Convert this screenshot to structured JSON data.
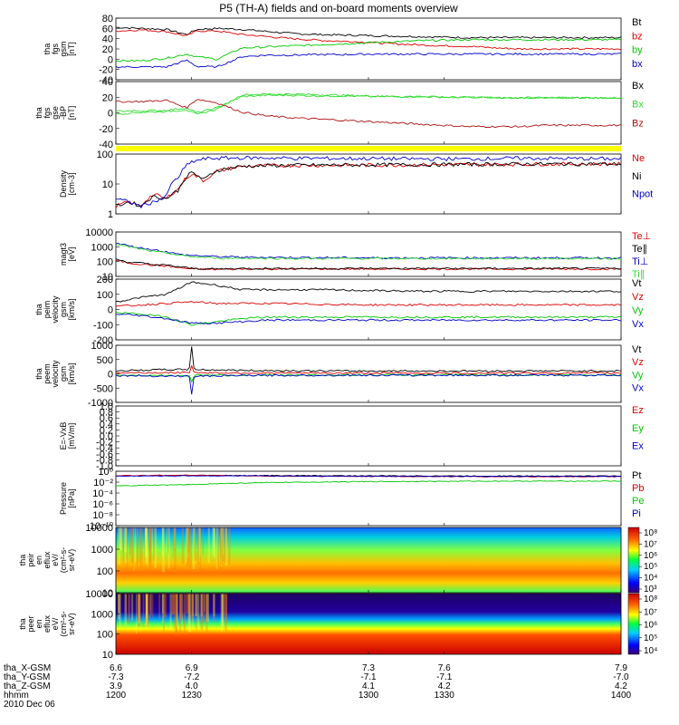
{
  "title": "P5 (TH-A) fields and on-board moments overview",
  "colors": {
    "black": "#000000",
    "red": "#dd0000",
    "green": "#00c800",
    "blue": "#0000cc",
    "light_green": "#33dd33",
    "dark_red": "#aa1111",
    "yellow_bar": "#ffff00"
  },
  "chart_data": [
    {
      "type": "line",
      "panel": "fgs_gsm",
      "ylabel_lines": [
        "tha",
        "fgs",
        "gsm",
        "[nT]"
      ],
      "ylim": [
        -40,
        80
      ],
      "yticks": [
        "80",
        "60",
        "40",
        "20",
        "0",
        "-20",
        "-40"
      ],
      "legend": [
        {
          "label": "Bt",
          "color": "black"
        },
        {
          "label": "bz",
          "color": "red"
        },
        {
          "label": "by",
          "color": "green"
        },
        {
          "label": "bx",
          "color": "blue"
        }
      ],
      "x": [
        1200,
        1210,
        1220,
        1228,
        1232,
        1240,
        1250,
        1260,
        1270,
        1280,
        1290,
        1300,
        1310,
        1320,
        1330,
        1340,
        1350,
        1360,
        1370,
        1380,
        1390,
        1400
      ],
      "series": [
        {
          "name": "Bt",
          "values": [
            62,
            60,
            58,
            48,
            58,
            60,
            58,
            54,
            50,
            48,
            47,
            46,
            45,
            44,
            43,
            42,
            42,
            42,
            42,
            42,
            42,
            42
          ]
        },
        {
          "name": "bz",
          "values": [
            55,
            57,
            54,
            45,
            55,
            55,
            48,
            44,
            40,
            37,
            35,
            33,
            30,
            28,
            26,
            25,
            22,
            20,
            20,
            20,
            20,
            20
          ]
        },
        {
          "name": "by",
          "values": [
            -3,
            -3,
            2,
            10,
            5,
            0,
            22,
            24,
            26,
            28,
            30,
            32,
            34,
            36,
            37,
            38,
            38,
            38,
            38,
            38,
            38,
            38
          ]
        },
        {
          "name": "bx",
          "values": [
            -15,
            -15,
            -15,
            -2,
            -14,
            -15,
            5,
            8,
            8,
            9,
            9,
            10,
            10,
            10,
            10,
            10,
            10,
            10,
            10,
            10,
            10,
            10
          ]
        }
      ]
    },
    {
      "type": "line",
      "panel": "fgs_gse",
      "ylabel_lines": [
        "tha",
        "fgs",
        "gse",
        "-BP",
        "[nT]"
      ],
      "ylim": [
        -50,
        50
      ],
      "yticks": [
        "40",
        "20",
        "0",
        "-20",
        "-40"
      ],
      "legend": [
        {
          "label": "Bx",
          "color": "black"
        },
        {
          "label": "Bx",
          "color": "light_green"
        },
        {
          "label": "Bz",
          "color": "dark_red"
        }
      ],
      "x": [
        1200,
        1210,
        1220,
        1228,
        1232,
        1240,
        1250,
        1260,
        1270,
        1280,
        1290,
        1300,
        1310,
        1320,
        1330,
        1340,
        1350,
        1360,
        1370,
        1380,
        1390,
        1400
      ],
      "series": [
        {
          "name": "Bx",
          "values": [
            3,
            3,
            4,
            8,
            0,
            8,
            26,
            28,
            28,
            27,
            27,
            26,
            26,
            26,
            25,
            25,
            24,
            24,
            24,
            24,
            24,
            24
          ]
        },
        {
          "name": "Bx",
          "values": [
            -2,
            1,
            2,
            5,
            -3,
            6,
            29,
            30,
            30,
            29,
            28,
            27,
            26,
            26,
            25,
            25,
            24,
            24,
            24,
            24,
            24,
            24
          ]
        },
        {
          "name": "Bz",
          "values": [
            18,
            18,
            20,
            8,
            22,
            16,
            1,
            -5,
            -8,
            -10,
            -12,
            -14,
            -16,
            -18,
            -20,
            -22,
            -22,
            -22,
            -20,
            -20,
            -20,
            -20
          ]
        }
      ]
    },
    {
      "type": "line",
      "panel": "density",
      "yscale": "log",
      "ylabel_lines": [
        "Density",
        "[cm-3]"
      ],
      "ylim": [
        1,
        250
      ],
      "yticks": [
        "100",
        "10",
        "1"
      ],
      "legend": [
        {
          "label": "Ne",
          "color": "red"
        },
        {
          "label": "Ni",
          "color": "black"
        },
        {
          "label": "Npot",
          "color": "blue"
        }
      ],
      "x": [
        1200,
        1205,
        1210,
        1215,
        1220,
        1225,
        1230,
        1235,
        1240,
        1250,
        1260,
        1270,
        1280,
        1290,
        1300,
        1320,
        1340,
        1360,
        1380,
        1400
      ],
      "series": [
        {
          "name": "Ne",
          "values": [
            2,
            3,
            2,
            6,
            4,
            10,
            40,
            20,
            50,
            80,
            85,
            88,
            88,
            90,
            90,
            92,
            95,
            98,
            100,
            100
          ]
        },
        {
          "name": "Ni",
          "values": [
            2,
            3,
            2,
            5,
            4,
            9,
            45,
            22,
            55,
            82,
            86,
            89,
            90,
            91,
            92,
            94,
            96,
            99,
            100,
            100
          ]
        },
        {
          "name": "Npot",
          "values": [
            4,
            3,
            2,
            3,
            5,
            30,
            120,
            160,
            170,
            175,
            175,
            170,
            170,
            165,
            165,
            160,
            160,
            170,
            165,
            160
          ]
        }
      ]
    },
    {
      "type": "line",
      "panel": "temperature",
      "yscale": "log",
      "ylabel_lines": [
        "magt3",
        "[eV]"
      ],
      "ylim": [
        5,
        20000
      ],
      "yticks": [
        "10000",
        "1000",
        "100",
        "10"
      ],
      "legend": [
        {
          "label": "Te⊥",
          "color": "red"
        },
        {
          "label": "Te∥",
          "color": "black"
        },
        {
          "label": "Ti⊥",
          "color": "blue"
        },
        {
          "label": "Ti∥",
          "color": "light_green"
        }
      ],
      "x": [
        1200,
        1205,
        1210,
        1215,
        1220,
        1225,
        1230,
        1240,
        1250,
        1270,
        1300,
        1330,
        1360,
        1400
      ],
      "series": [
        {
          "name": "Te⊥",
          "values": [
            100,
            60,
            50,
            40,
            35,
            25,
            20,
            18,
            20,
            20,
            20,
            20,
            20,
            20
          ]
        },
        {
          "name": "Te∥",
          "values": [
            120,
            70,
            60,
            45,
            40,
            30,
            22,
            20,
            22,
            22,
            22,
            22,
            22,
            22
          ]
        },
        {
          "name": "Ti⊥",
          "values": [
            2500,
            1500,
            1000,
            700,
            500,
            300,
            250,
            200,
            180,
            170,
            160,
            160,
            160,
            160
          ]
        },
        {
          "name": "Ti∥",
          "values": [
            2000,
            1200,
            800,
            500,
            400,
            250,
            200,
            150,
            150,
            140,
            140,
            140,
            140,
            140
          ]
        }
      ]
    },
    {
      "type": "line",
      "panel": "peim_velocity",
      "ylabel_lines": [
        "tha",
        "peim",
        "velocity",
        "gsm",
        "[km/s]"
      ],
      "ylim": [
        -200,
        200
      ],
      "yticks": [
        "200",
        "100",
        "0",
        "-100",
        "-200"
      ],
      "legend": [
        {
          "label": "Vt",
          "color": "black"
        },
        {
          "label": "Vz",
          "color": "red"
        },
        {
          "label": "Vy",
          "color": "green"
        },
        {
          "label": "Vx",
          "color": "blue"
        }
      ],
      "x": [
        1200,
        1210,
        1220,
        1230,
        1240,
        1250,
        1260,
        1280,
        1300,
        1320,
        1340,
        1360,
        1380,
        1400
      ],
      "series": [
        {
          "name": "Vt",
          "values": [
            50,
            80,
            100,
            180,
            160,
            130,
            130,
            130,
            125,
            120,
            120,
            120,
            120,
            120
          ]
        },
        {
          "name": "Vz",
          "values": [
            20,
            30,
            40,
            50,
            40,
            40,
            40,
            35,
            30,
            30,
            30,
            30,
            30,
            30
          ]
        },
        {
          "name": "Vy",
          "values": [
            -20,
            -30,
            -50,
            -100,
            -80,
            -60,
            -50,
            -50,
            -50,
            -50,
            -50,
            -50,
            -50,
            -50
          ]
        },
        {
          "name": "Vx",
          "values": [
            -30,
            -40,
            -60,
            -90,
            -90,
            -80,
            -70,
            -70,
            -70,
            -70,
            -70,
            -70,
            -70,
            -70
          ]
        }
      ]
    },
    {
      "type": "line",
      "panel": "peem_velocity",
      "ylabel_lines": [
        "tha",
        "peem",
        "velocity",
        "gsm",
        "[km/s]"
      ],
      "ylim": [
        -1000,
        1000
      ],
      "yticks": [
        "1000",
        "500",
        "0",
        "-500",
        "-1000"
      ],
      "legend": [
        {
          "label": "Vt",
          "color": "black"
        },
        {
          "label": "Vz",
          "color": "red"
        },
        {
          "label": "Vy",
          "color": "green"
        },
        {
          "label": "Vx",
          "color": "blue"
        }
      ],
      "x": [
        1200,
        1220,
        1229,
        1230,
        1231,
        1250,
        1280,
        1320,
        1360,
        1400
      ],
      "series": [
        {
          "name": "Vt",
          "values": [
            100,
            150,
            150,
            950,
            150,
            120,
            100,
            100,
            100,
            100
          ]
        },
        {
          "name": "Vz",
          "values": [
            30,
            40,
            40,
            300,
            40,
            30,
            25,
            25,
            25,
            25
          ]
        },
        {
          "name": "Vy",
          "values": [
            -40,
            -60,
            -60,
            -300,
            -60,
            -50,
            -40,
            -40,
            -40,
            -40
          ]
        },
        {
          "name": "Vx",
          "values": [
            -60,
            -80,
            -80,
            -700,
            -80,
            -60,
            -50,
            -50,
            -50,
            -50
          ]
        }
      ]
    },
    {
      "type": "line",
      "panel": "e_field",
      "ylabel_lines": [
        "E=-VxB",
        "[mV/m]"
      ],
      "ylim": [
        -1.0,
        1.0
      ],
      "yticks": [
        "1.0",
        "0.8",
        "0.6",
        "0.4",
        "0.2",
        "0.0",
        "-0.2",
        "-0.4",
        "-0.6",
        "-0.8",
        "-1.0"
      ],
      "legend": [
        {
          "label": "Ez",
          "color": "red"
        },
        {
          "label": "Ey",
          "color": "green"
        },
        {
          "label": "Ex",
          "color": "blue"
        }
      ],
      "series": []
    },
    {
      "type": "line",
      "panel": "pressure",
      "yscale": "log",
      "ylabel_lines": [
        "Pressure",
        "[nPa]"
      ],
      "ylim": [
        1e-10,
        10
      ],
      "yticks": [
        "10⁰",
        "10⁻²",
        "10⁻⁴",
        "10⁻⁶",
        "10⁻⁸",
        "10⁻¹⁰"
      ],
      "legend": [
        {
          "label": "Pt",
          "color": "black"
        },
        {
          "label": "Pb",
          "color": "red"
        },
        {
          "label": "Pe",
          "color": "green"
        },
        {
          "label": "Pi",
          "color": "blue"
        }
      ],
      "x": [
        1200,
        1230,
        1260,
        1300,
        1350,
        1400
      ],
      "series": [
        {
          "name": "Pt",
          "values": [
            1.2,
            1.5,
            1.3,
            1.2,
            1.1,
            1.1
          ]
        },
        {
          "name": "Pb",
          "values": [
            1.3,
            1.6,
            1.0,
            0.9,
            0.8,
            0.8
          ]
        },
        {
          "name": "Pe",
          "values": [
            0.01,
            0.02,
            0.05,
            0.08,
            0.1,
            0.1
          ]
        },
        {
          "name": "Pi",
          "values": [
            1.0,
            1.2,
            1.1,
            1.0,
            0.9,
            0.9
          ]
        }
      ]
    },
    {
      "type": "heatmap",
      "panel": "peir_eflux",
      "ylabel_lines": [
        "tha",
        "peir",
        "en",
        "eflux",
        "eV/",
        "(cm²-s-",
        "sr-eV)"
      ],
      "yscale": "log",
      "ylim": [
        10,
        20000
      ],
      "yticks": [
        "10000",
        "1000",
        "100",
        "10"
      ],
      "colorbar_ticks": [
        "10⁸",
        "10⁷",
        "10⁶",
        "10⁵",
        "10⁴",
        "10³"
      ]
    },
    {
      "type": "heatmap",
      "panel": "peer_eflux",
      "ylabel_lines": [
        "tha",
        "peer",
        "en",
        "eflux",
        "eV/",
        "(cm²-s-",
        "sr-eV)"
      ],
      "yscale": "log",
      "ylim": [
        10,
        20000
      ],
      "yticks": [
        "10000",
        "1000",
        "100",
        "10"
      ],
      "colorbar_ticks": [
        "10⁸",
        "10⁷",
        "10⁶",
        "10⁵",
        "10⁴"
      ]
    }
  ],
  "x_axis": {
    "rows": [
      {
        "label": "tha_X-GSM",
        "values": [
          "6.6",
          "6.9",
          "7.3",
          "7.6",
          "7.9"
        ]
      },
      {
        "label": "tha_Y-GSM",
        "values": [
          "-7.3",
          "-7.2",
          "-7.1",
          "-7.1",
          "-7.0"
        ]
      },
      {
        "label": "tha_Z-GSM",
        "values": [
          "3.9",
          "4.0",
          "4.1",
          "4.2",
          "4.2"
        ]
      },
      {
        "label": "hhmm",
        "values": [
          "1200",
          "1230",
          "1300",
          "1330",
          "1400"
        ]
      }
    ],
    "date": "2010 Dec 06"
  }
}
